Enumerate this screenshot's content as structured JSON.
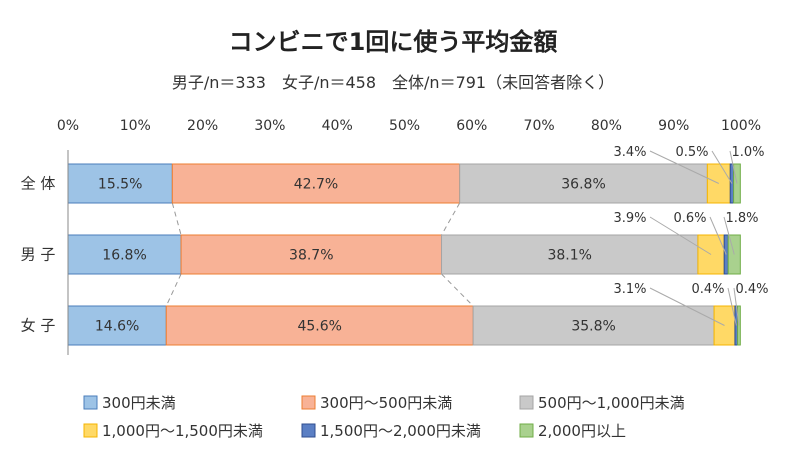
{
  "chart_data": {
    "type": "bar",
    "orientation": "horizontal",
    "stacked": "percent",
    "title": "コンビニで1回に使う平均金額",
    "subtitle": "男子/n＝333　女子/n＝458　全体/n＝791（未回答者除く）",
    "xlim": [
      0,
      100
    ],
    "x_ticks": [
      "0%",
      "10%",
      "20%",
      "30%",
      "40%",
      "50%",
      "60%",
      "70%",
      "80%",
      "90%",
      "100%"
    ],
    "categories": [
      "全 体",
      "男 子",
      "女 子"
    ],
    "series": [
      {
        "name": "300円未満",
        "color": "#9DC3E6",
        "stroke": "#4A7EBB",
        "values": [
          15.5,
          16.8,
          14.6
        ],
        "labels": [
          "15.5%",
          "16.8%",
          "14.6%"
        ]
      },
      {
        "name": "300円～500円未満",
        "color": "#F8B296",
        "stroke": "#ED7D31",
        "values": [
          42.7,
          38.7,
          45.6
        ],
        "labels": [
          "42.7%",
          "38.7%",
          "45.6%"
        ]
      },
      {
        "name": "500円～1,000円未満",
        "color": "#C9C9C9",
        "stroke": "#A5A5A5",
        "values": [
          36.8,
          38.1,
          35.8
        ],
        "labels": [
          "36.8%",
          "38.1%",
          "35.8%"
        ]
      },
      {
        "name": "1,000円～1,500円未満",
        "color": "#FFD966",
        "stroke": "#F4B400",
        "values": [
          3.4,
          3.9,
          3.1
        ],
        "labels": [
          "3.4%",
          "3.9%",
          "3.1%"
        ]
      },
      {
        "name": "1,500円～2,000円未満",
        "color": "#5B7FC4",
        "stroke": "#2F4E8F",
        "values": [
          0.5,
          0.6,
          0.4
        ],
        "labels": [
          "0.5%",
          "0.6%",
          "0.4%"
        ]
      },
      {
        "name": "2,000円以上",
        "color": "#A9D18E",
        "stroke": "#70AD47",
        "values": [
          1.0,
          1.8,
          0.4
        ],
        "labels": [
          "1.0%",
          "1.8%",
          "0.4%"
        ]
      }
    ],
    "legend_position": "bottom",
    "grid": false
  }
}
